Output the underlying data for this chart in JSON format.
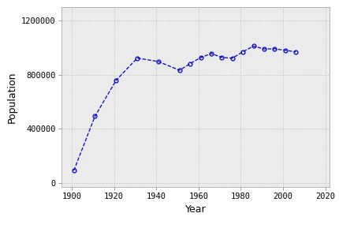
{
  "years": [
    1901,
    1911,
    1921,
    1931,
    1941,
    1951,
    1956,
    1961,
    1966,
    1971,
    1976,
    1981,
    1986,
    1991,
    1996,
    2001,
    2006
  ],
  "population": [
    91279,
    492432,
    757510,
    921785,
    895992,
    831728,
    880665,
    925181,
    955344,
    926242,
    921323,
    968313,
    1010198,
    988928,
    990237,
    978933,
    968157
  ],
  "line_color": "#0000CC",
  "marker_color": "#0000CC",
  "marker_style": "o",
  "marker_size": 3.5,
  "marker_facecolor": "none",
  "line_style": "--",
  "line_width": 0.9,
  "xlabel": "Year",
  "ylabel": "Population",
  "xlim": [
    1895,
    2022
  ],
  "ylim": [
    -30000,
    1300000
  ],
  "xticks": [
    1900,
    1920,
    1940,
    1960,
    1980,
    2000,
    2020
  ],
  "yticks": [
    0,
    400000,
    800000,
    1200000
  ],
  "ytick_labels": [
    "0",
    "400000",
    "800000",
    "1200000"
  ],
  "grid_color": "#bbbbbb",
  "grid_style": ":",
  "background_color": "#ffffff",
  "plot_bg_color": "#ebebeb",
  "xlabel_fontsize": 9,
  "ylabel_fontsize": 9,
  "tick_fontsize": 7.5
}
